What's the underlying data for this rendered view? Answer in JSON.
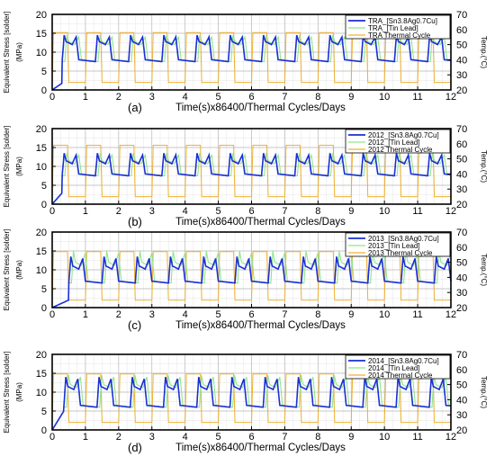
{
  "chart_data": [
    {
      "type": "line",
      "panel_label": "(a)",
      "xlabel": "Time(s)x86400/Thermal Cycles/Days",
      "ylabel": "Equivalent Stress [solder]",
      "ylabel_unit": "(MPa)",
      "y2label": "Temp.(°C)",
      "xlim": [
        0,
        12
      ],
      "ylim": [
        0,
        20
      ],
      "y2lim": [
        20,
        70
      ],
      "xticks": [
        "0",
        "1",
        "2",
        "3",
        "4",
        "5",
        "6",
        "7",
        "8",
        "9",
        "10",
        "11",
        "12"
      ],
      "yticks": [
        "0",
        "5",
        "10",
        "15",
        "20"
      ],
      "y2ticks": [
        "20",
        "30",
        "40",
        "50",
        "60",
        "70"
      ],
      "legend_position": "top-right",
      "series": [
        {
          "name": "TRA_[Sn3.8Ag0.7Cu]",
          "color": "#1a2fd6",
          "axis": "left",
          "min": 7.5,
          "peak": 14.5,
          "plateau": 12.8,
          "start_day": 0.3,
          "ramp_from": 1.8
        },
        {
          "name": "TRA_[Tin Lead]",
          "color": "#8ee68e",
          "axis": "left",
          "min": 7.5,
          "peak": 14.5,
          "plateau": 12.8,
          "start_day": 0.3,
          "ramp_from": 1.8
        },
        {
          "name": "TRA Thermal Cycle",
          "color": "#f0b030",
          "axis": "right",
          "low": 25,
          "high": 58
        }
      ]
    },
    {
      "type": "line",
      "panel_label": "(b)",
      "xlabel": "Time(s)x86400/Thermal Cycles/Days",
      "ylabel": "Equivalent Stress [solder]",
      "ylabel_unit": "(MPa)",
      "y2label": "Temp.(°C)",
      "xlim": [
        0,
        12
      ],
      "ylim": [
        0,
        20
      ],
      "y2lim": [
        20,
        70
      ],
      "xticks": [
        "0",
        "1",
        "2",
        "3",
        "4",
        "5",
        "6",
        "7",
        "8",
        "9",
        "10",
        "11",
        "12"
      ],
      "yticks": [
        "0",
        "5",
        "10",
        "15",
        "20"
      ],
      "y2ticks": [
        "20",
        "30",
        "40",
        "50",
        "60",
        "70"
      ],
      "legend_position": "top-right",
      "series": [
        {
          "name": "2012_[Sn3.8Ag0.7Cu]",
          "color": "#1a2fd6",
          "axis": "left",
          "min": 7.5,
          "peak": 13.5,
          "plateau": 11.5,
          "start_day": 0.3,
          "ramp_from": 3
        },
        {
          "name": "2012_[Tin Lead]",
          "color": "#8ee68e",
          "axis": "left",
          "min": 7.5,
          "peak": 13.5,
          "plateau": 11.5,
          "start_day": 0.3,
          "ramp_from": 3
        },
        {
          "name": "2012 Thermal Cycle",
          "color": "#f0b030",
          "axis": "right",
          "low": 25,
          "high": 59
        }
      ]
    },
    {
      "type": "line",
      "panel_label": "(c)",
      "xlabel": "Time(s)x86400/Thermal Cycles/Days",
      "ylabel": "Equivalent Stress [solder]",
      "ylabel_unit": "(MPa)",
      "y2label": "Temp.(°C)",
      "xlim": [
        0,
        12
      ],
      "ylim": [
        0,
        20
      ],
      "y2lim": [
        20,
        70
      ],
      "xticks": [
        "0",
        "1",
        "2",
        "3",
        "4",
        "5",
        "6",
        "7",
        "8",
        "9",
        "10",
        "11",
        "12"
      ],
      "yticks": [
        "0",
        "5",
        "10",
        "15",
        "20"
      ],
      "y2ticks": [
        "20",
        "30",
        "40",
        "50",
        "60",
        "70"
      ],
      "legend_position": "top-right",
      "series": [
        {
          "name": "2013_[Sn3.8Ag0.7Cu]",
          "color": "#1a2fd6",
          "axis": "left",
          "min": 6.5,
          "peak": 13.5,
          "plateau": 11.0,
          "start_day": 0.5,
          "ramp_from": 2
        },
        {
          "name": "2013_[Tin Lead]",
          "color": "#8ee68e",
          "axis": "left",
          "min": 6.5,
          "peak": 15.0,
          "plateau": 12.0,
          "start_day": 0.5,
          "ramp_from": 2
        },
        {
          "name": "2013 Thermal Cycle",
          "color": "#f0b030",
          "axis": "right",
          "low": 25,
          "high": 57
        }
      ]
    },
    {
      "type": "line",
      "panel_label": "(d)",
      "xlabel": "Time(s)x86400/Thermal Cycles/Days",
      "ylabel": "Equivalent Stress [solder]",
      "ylabel_unit": "(MPa)",
      "y2label": "Temp.(°C)",
      "xlim": [
        0,
        12
      ],
      "ylim": [
        0,
        20
      ],
      "y2lim": [
        20,
        70
      ],
      "xticks": [
        "0",
        "1",
        "2",
        "3",
        "4",
        "5",
        "6",
        "7",
        "8",
        "9",
        "10",
        "11",
        "12"
      ],
      "yticks": [
        "0",
        "5",
        "10",
        "15",
        "20"
      ],
      "y2ticks": [
        "20",
        "30",
        "40",
        "50",
        "60",
        "70"
      ],
      "legend_position": "top-right",
      "series": [
        {
          "name": "2014_[Sn3.8Ag0.7Cu]",
          "color": "#1a2fd6",
          "axis": "left",
          "min": 6.0,
          "peak": 14.0,
          "plateau": 11.5,
          "start_day": 0.35,
          "ramp_from": 5
        },
        {
          "name": "2014_[Tin Lead]",
          "color": "#8ee68e",
          "axis": "left",
          "min": 6.0,
          "peak": 14.5,
          "plateau": 12.0,
          "start_day": 0.35,
          "ramp_from": 5
        },
        {
          "name": "2014 Thermal Cycle",
          "color": "#f0b030",
          "axis": "right",
          "low": 25,
          "high": 57
        }
      ]
    }
  ]
}
